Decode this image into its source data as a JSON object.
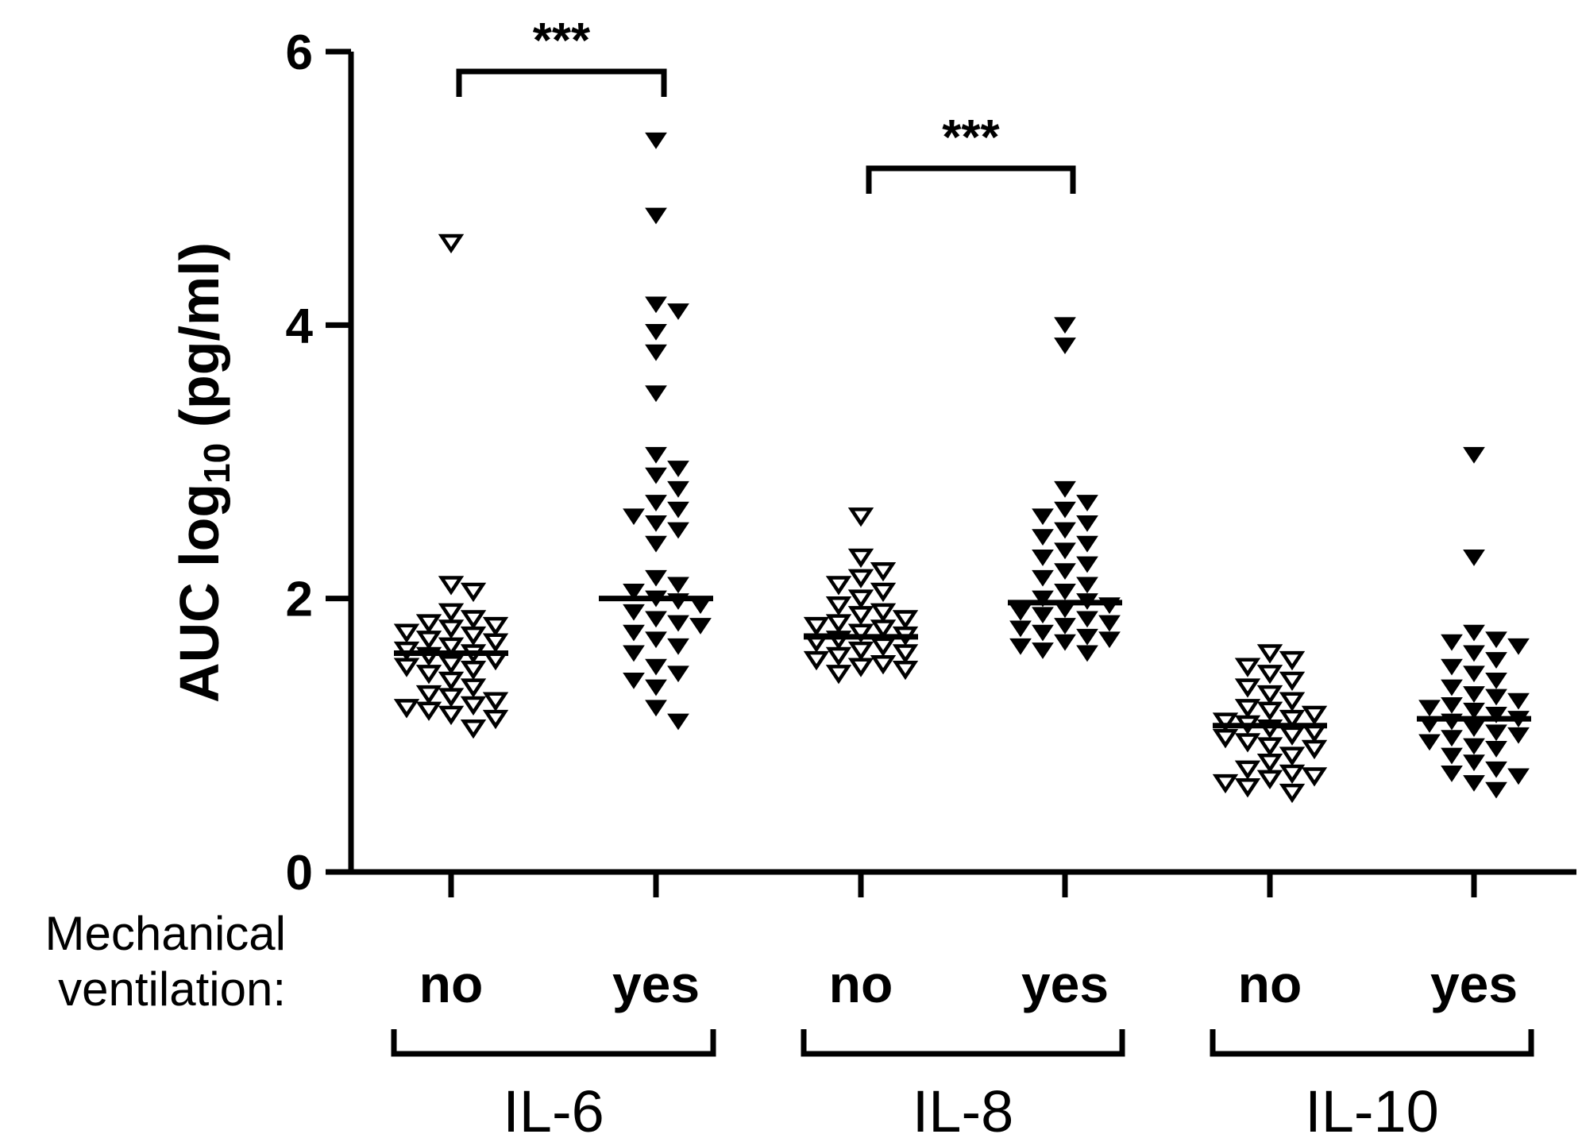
{
  "chart_data": {
    "type": "scatter",
    "ylabel_main": "AUC log",
    "ylabel_sub": "10",
    "ylabel_unit": " (pg/ml)",
    "ylim": [
      0,
      6
    ],
    "yticks": [
      "0",
      "2",
      "4",
      "6"
    ],
    "yticks_values": [
      0,
      2,
      4,
      6
    ],
    "legend_title_line1": "Mechanical",
    "legend_title_line2": "ventilation:",
    "grid": false,
    "series": [
      {
        "group": "IL-6",
        "ventilation": "no",
        "marker": "open-triangle-down",
        "median": 1.6,
        "values": [
          4.6,
          2.1,
          2.05,
          1.9,
          1.85,
          1.82,
          1.8,
          1.78,
          1.75,
          1.73,
          1.7,
          1.68,
          1.65,
          1.62,
          1.6,
          1.58,
          1.55,
          1.52,
          1.5,
          1.48,
          1.45,
          1.4,
          1.35,
          1.3,
          1.28,
          1.25,
          1.22,
          1.2,
          1.18,
          1.15,
          1.12,
          1.05
        ]
      },
      {
        "group": "IL-6",
        "ventilation": "yes",
        "marker": "filled-triangle-down",
        "median": 2.0,
        "values": [
          5.35,
          4.8,
          4.15,
          4.1,
          3.95,
          3.8,
          3.5,
          3.05,
          2.95,
          2.9,
          2.8,
          2.7,
          2.65,
          2.6,
          2.55,
          2.5,
          2.4,
          2.15,
          2.1,
          2.05,
          2.0,
          1.98,
          1.95,
          1.9,
          1.85,
          1.82,
          1.8,
          1.75,
          1.7,
          1.65,
          1.6,
          1.5,
          1.45,
          1.4,
          1.35,
          1.2,
          1.1
        ]
      },
      {
        "group": "IL-8",
        "ventilation": "no",
        "marker": "open-triangle-down",
        "median": 1.72,
        "values": [
          2.6,
          2.3,
          2.2,
          2.15,
          2.1,
          2.05,
          2.0,
          1.95,
          1.9,
          1.88,
          1.85,
          1.82,
          1.8,
          1.78,
          1.75,
          1.73,
          1.7,
          1.68,
          1.65,
          1.62,
          1.6,
          1.58,
          1.55,
          1.52,
          1.5,
          1.48,
          1.45
        ]
      },
      {
        "group": "IL-8",
        "ventilation": "yes",
        "marker": "filled-triangle-down",
        "median": 1.97,
        "values": [
          4.0,
          3.85,
          2.8,
          2.7,
          2.65,
          2.6,
          2.55,
          2.5,
          2.45,
          2.4,
          2.35,
          2.3,
          2.25,
          2.2,
          2.15,
          2.1,
          2.05,
          2.0,
          1.98,
          1.95,
          1.92,
          1.9,
          1.88,
          1.85,
          1.82,
          1.8,
          1.78,
          1.75,
          1.72,
          1.7,
          1.68,
          1.65,
          1.62,
          1.6
        ]
      },
      {
        "group": "IL-10",
        "ventilation": "no",
        "marker": "open-triangle-down",
        "median": 1.07,
        "values": [
          1.6,
          1.55,
          1.5,
          1.45,
          1.4,
          1.35,
          1.3,
          1.25,
          1.2,
          1.18,
          1.15,
          1.12,
          1.1,
          1.08,
          1.05,
          1.02,
          1.0,
          0.98,
          0.95,
          0.92,
          0.9,
          0.85,
          0.8,
          0.75,
          0.72,
          0.7,
          0.68,
          0.65,
          0.62,
          0.58
        ]
      },
      {
        "group": "IL-10",
        "ventilation": "yes",
        "marker": "filled-triangle-down",
        "median": 1.12,
        "values": [
          3.05,
          2.3,
          1.75,
          1.7,
          1.68,
          1.65,
          1.6,
          1.55,
          1.5,
          1.45,
          1.4,
          1.35,
          1.3,
          1.28,
          1.25,
          1.22,
          1.2,
          1.18,
          1.15,
          1.12,
          1.1,
          1.08,
          1.05,
          1.02,
          1.0,
          0.98,
          0.95,
          0.92,
          0.9,
          0.85,
          0.8,
          0.75,
          0.72,
          0.7,
          0.65,
          0.6
        ]
      }
    ],
    "significance": [
      {
        "group": "IL-6",
        "label": "***"
      },
      {
        "group": "IL-8",
        "label": "***"
      }
    ]
  }
}
